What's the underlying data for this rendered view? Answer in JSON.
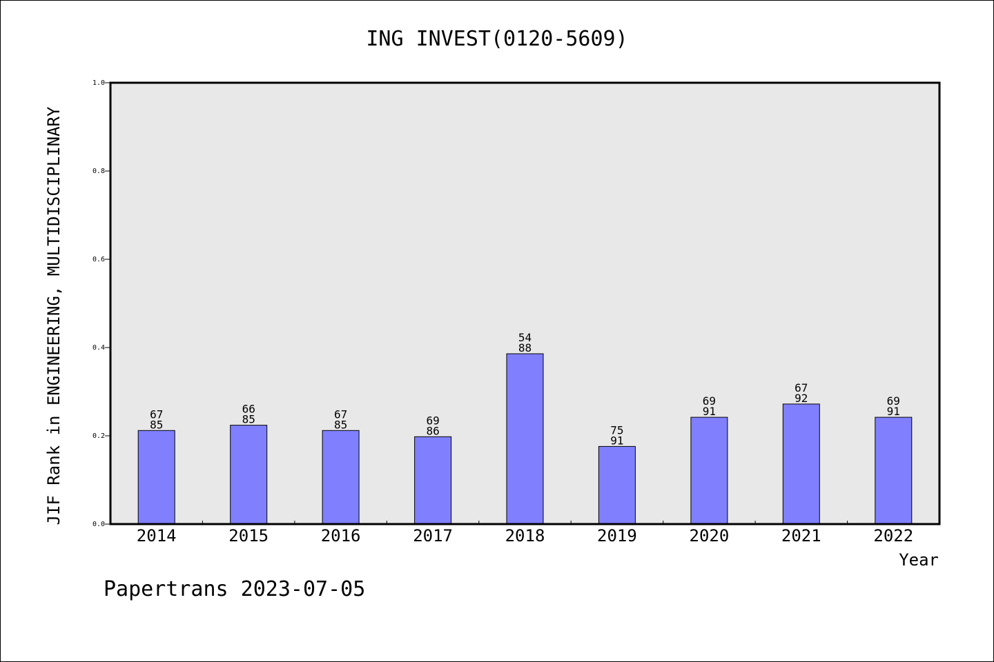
{
  "chart_data": {
    "type": "bar",
    "title": "ING INVEST(0120-5609)",
    "xlabel": "Year",
    "ylabel": "JIF Rank in ENGINEERING, MULTIDISCIPLINARY",
    "ylim": [
      0,
      1.0
    ],
    "yticks": [
      "0.0",
      "0.2",
      "0.4",
      "0.6",
      "0.8",
      "1.0"
    ],
    "grid": false,
    "bar_color": "#8080ff",
    "plot_background": "#e8e8e8",
    "categories": [
      "2014",
      "2015",
      "2016",
      "2017",
      "2018",
      "2019",
      "2020",
      "2021",
      "2022"
    ],
    "values": [
      0.212,
      0.224,
      0.212,
      0.198,
      0.386,
      0.176,
      0.242,
      0.272,
      0.242
    ],
    "labels_top": [
      "67",
      "66",
      "67",
      "69",
      "54",
      "75",
      "69",
      "67",
      "69"
    ],
    "labels_bottom": [
      "85",
      "85",
      "85",
      "86",
      "88",
      "91",
      "91",
      "92",
      "91"
    ]
  },
  "footer": "Papertrans 2023-07-05"
}
